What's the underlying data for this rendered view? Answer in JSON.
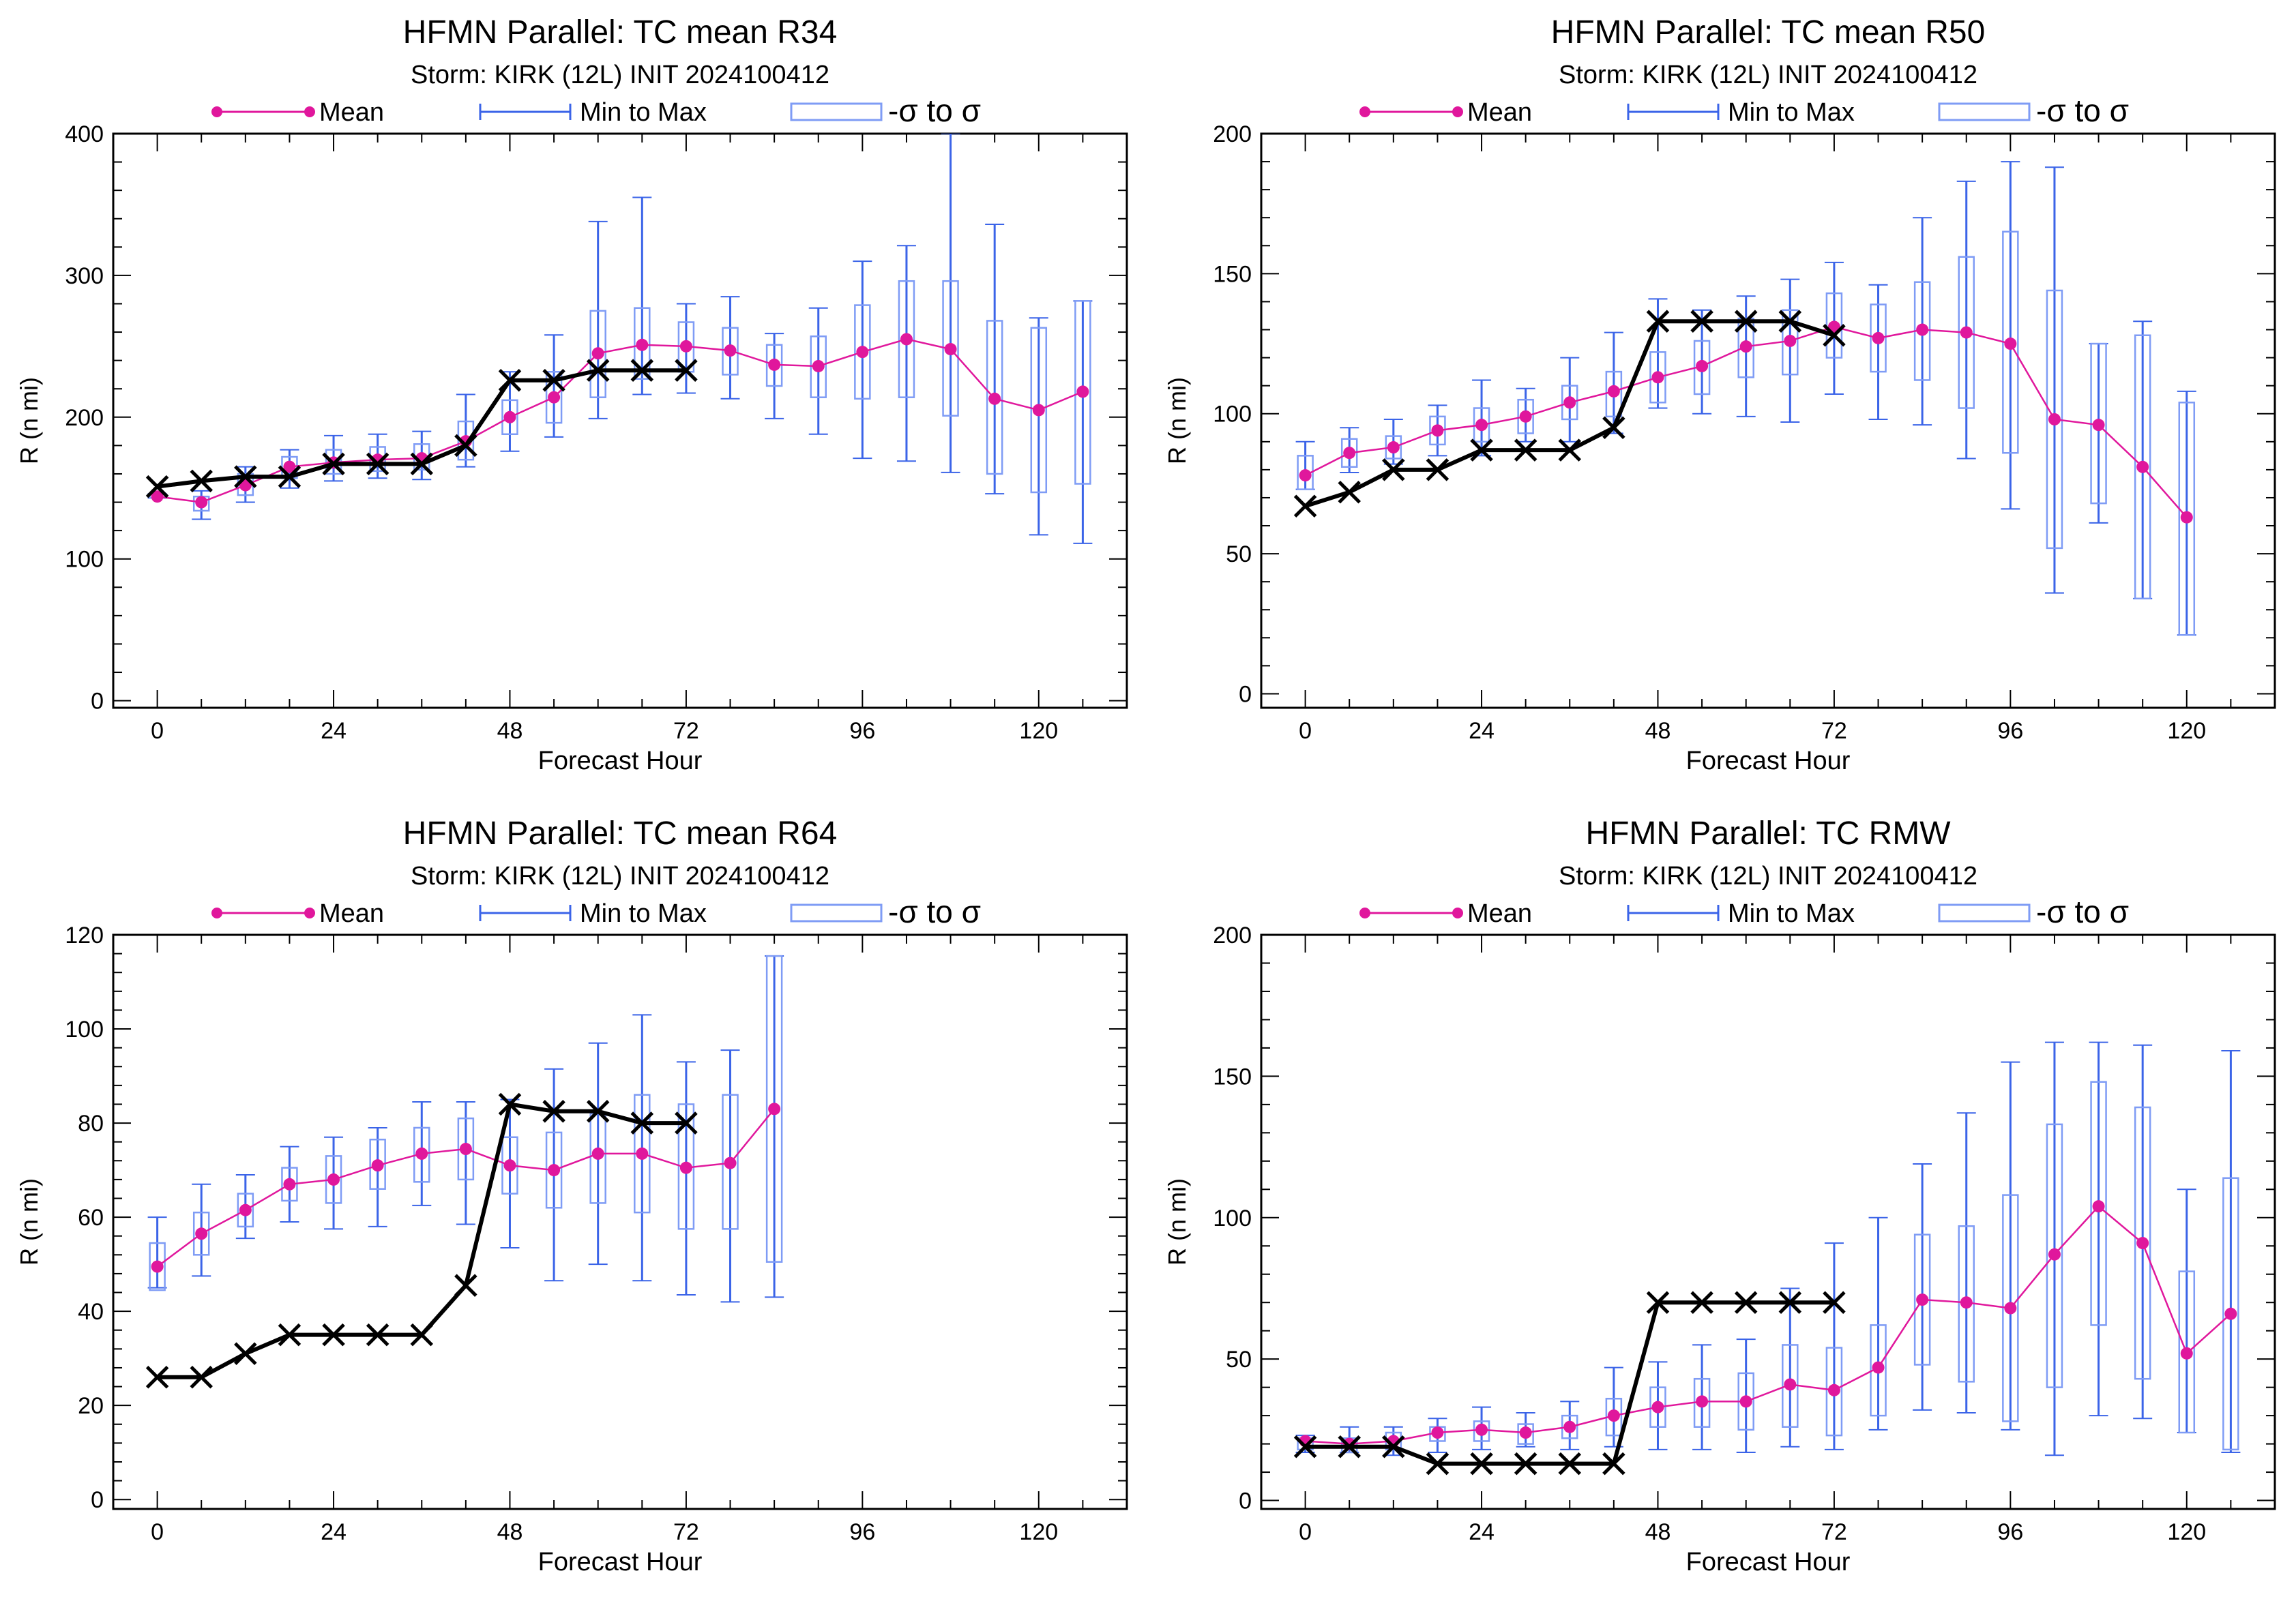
{
  "legend": {
    "mean_label": "Mean",
    "minmax_label": "Min to Max",
    "sigma_label": "-σ to σ"
  },
  "colors": {
    "mean": "#e0179c",
    "box": "#3b64e8",
    "box_thin": "#7f9cf5",
    "observed": "#000000"
  },
  "chart_data": [
    {
      "type": "box",
      "title": "HFMN Parallel: TC mean R34",
      "subtitle": "Storm: KIRK (12L) INIT 2024100412",
      "xlabel": "Forecast Hour",
      "ylabel": "R (n mi)",
      "xlim": [
        -6,
        132
      ],
      "ylim": [
        -5,
        400
      ],
      "xticks": [
        0,
        24,
        48,
        72,
        96,
        120
      ],
      "yticks": [
        0,
        100,
        200,
        300,
        400
      ],
      "mean": {
        "x": [
          0,
          6,
          12,
          18,
          24,
          30,
          36,
          42,
          48,
          54,
          60,
          66,
          72,
          78,
          84,
          90,
          96,
          102,
          108,
          114,
          120,
          126
        ],
        "y": [
          144,
          140,
          152,
          165,
          168,
          170,
          171,
          183,
          200,
          214,
          245,
          251,
          250,
          247,
          237,
          236,
          246,
          255,
          248,
          213,
          205,
          218
        ]
      },
      "boxes": [
        {
          "x": 0,
          "min": 143,
          "max": 146,
          "lo": 143,
          "hi": 146
        },
        {
          "x": 6,
          "min": 128,
          "max": 148,
          "lo": 134,
          "hi": 144
        },
        {
          "x": 12,
          "min": 140,
          "max": 165,
          "lo": 145,
          "hi": 160
        },
        {
          "x": 18,
          "min": 150,
          "max": 177,
          "lo": 157,
          "hi": 172
        },
        {
          "x": 24,
          "min": 155,
          "max": 187,
          "lo": 160,
          "hi": 177
        },
        {
          "x": 30,
          "min": 157,
          "max": 188,
          "lo": 162,
          "hi": 179
        },
        {
          "x": 36,
          "min": 156,
          "max": 190,
          "lo": 163,
          "hi": 181
        },
        {
          "x": 42,
          "min": 165,
          "max": 216,
          "lo": 170,
          "hi": 197
        },
        {
          "x": 48,
          "min": 176,
          "max": 232,
          "lo": 188,
          "hi": 212
        },
        {
          "x": 54,
          "min": 186,
          "max": 258,
          "lo": 196,
          "hi": 232
        },
        {
          "x": 60,
          "min": 199,
          "max": 338,
          "lo": 214,
          "hi": 275
        },
        {
          "x": 66,
          "min": 216,
          "max": 355,
          "lo": 227,
          "hi": 277
        },
        {
          "x": 72,
          "min": 217,
          "max": 280,
          "lo": 232,
          "hi": 267
        },
        {
          "x": 78,
          "min": 213,
          "max": 285,
          "lo": 230,
          "hi": 263
        },
        {
          "x": 84,
          "min": 199,
          "max": 259,
          "lo": 222,
          "hi": 251
        },
        {
          "x": 90,
          "min": 188,
          "max": 277,
          "lo": 214,
          "hi": 257
        },
        {
          "x": 96,
          "min": 171,
          "max": 310,
          "lo": 213,
          "hi": 279
        },
        {
          "x": 102,
          "min": 169,
          "max": 321,
          "lo": 214,
          "hi": 296
        },
        {
          "x": 108,
          "min": 161,
          "max": 400,
          "lo": 201,
          "hi": 296
        },
        {
          "x": 114,
          "min": 146,
          "max": 336,
          "lo": 160,
          "hi": 268
        },
        {
          "x": 120,
          "min": 117,
          "max": 270,
          "lo": 147,
          "hi": 263
        },
        {
          "x": 126,
          "min": 111,
          "max": 282,
          "lo": 153,
          "hi": 282
        }
      ],
      "observed": {
        "x": [
          0,
          6,
          12,
          18,
          24,
          30,
          36,
          42,
          48,
          54,
          60,
          66,
          72
        ],
        "y": [
          151,
          155,
          158,
          158,
          167,
          167,
          167,
          180,
          226,
          226,
          233,
          233,
          233
        ]
      }
    },
    {
      "type": "box",
      "title": "HFMN Parallel: TC mean R50",
      "subtitle": "Storm: KIRK (12L) INIT 2024100412",
      "xlabel": "Forecast Hour",
      "ylabel": "R (n mi)",
      "xlim": [
        -6,
        132
      ],
      "ylim": [
        -5,
        200
      ],
      "xticks": [
        0,
        24,
        48,
        72,
        96,
        120
      ],
      "yticks": [
        0,
        50,
        100,
        150,
        200
      ],
      "mean": {
        "x": [
          0,
          6,
          12,
          18,
          24,
          30,
          36,
          42,
          48,
          54,
          60,
          66,
          72,
          78,
          84,
          90,
          96,
          102,
          108,
          114,
          120
        ],
        "y": [
          78,
          86,
          88,
          94,
          96,
          99,
          104,
          108,
          113,
          117,
          124,
          126,
          131,
          127,
          130,
          129,
          125,
          98,
          96,
          81,
          63
        ]
      },
      "boxes": [
        {
          "x": 0,
          "min": 73,
          "max": 90,
          "lo": 73,
          "hi": 85
        },
        {
          "x": 6,
          "min": 79,
          "max": 95,
          "lo": 81,
          "hi": 91
        },
        {
          "x": 12,
          "min": 82,
          "max": 98,
          "lo": 84,
          "hi": 92
        },
        {
          "x": 18,
          "min": 85,
          "max": 103,
          "lo": 89,
          "hi": 99
        },
        {
          "x": 24,
          "min": 85,
          "max": 112,
          "lo": 90,
          "hi": 102
        },
        {
          "x": 30,
          "min": 90,
          "max": 109,
          "lo": 93,
          "hi": 105
        },
        {
          "x": 36,
          "min": 90,
          "max": 120,
          "lo": 98,
          "hi": 110
        },
        {
          "x": 42,
          "min": 93,
          "max": 129,
          "lo": 99,
          "hi": 115
        },
        {
          "x": 48,
          "min": 102,
          "max": 141,
          "lo": 104,
          "hi": 122
        },
        {
          "x": 54,
          "min": 100,
          "max": 137,
          "lo": 107,
          "hi": 126
        },
        {
          "x": 60,
          "min": 99,
          "max": 142,
          "lo": 113,
          "hi": 134
        },
        {
          "x": 66,
          "min": 97,
          "max": 148,
          "lo": 114,
          "hi": 137
        },
        {
          "x": 72,
          "min": 107,
          "max": 154,
          "lo": 120,
          "hi": 143
        },
        {
          "x": 78,
          "min": 98,
          "max": 146,
          "lo": 115,
          "hi": 139
        },
        {
          "x": 84,
          "min": 96,
          "max": 170,
          "lo": 112,
          "hi": 147
        },
        {
          "x": 90,
          "min": 84,
          "max": 183,
          "lo": 102,
          "hi": 156
        },
        {
          "x": 96,
          "min": 66,
          "max": 190,
          "lo": 86,
          "hi": 165
        },
        {
          "x": 102,
          "min": 36,
          "max": 188,
          "lo": 52,
          "hi": 144
        },
        {
          "x": 108,
          "min": 61,
          "max": 125,
          "lo": 68,
          "hi": 125
        },
        {
          "x": 114,
          "min": 34,
          "max": 133,
          "lo": 34,
          "hi": 128
        },
        {
          "x": 120,
          "min": 21,
          "max": 108,
          "lo": 21,
          "hi": 104
        }
      ],
      "observed": {
        "x": [
          0,
          6,
          12,
          18,
          24,
          30,
          36,
          42,
          48,
          54,
          60,
          66,
          72
        ],
        "y": [
          67,
          72,
          80,
          80,
          87,
          87,
          87,
          95,
          133,
          133,
          133,
          133,
          128
        ]
      }
    },
    {
      "type": "box",
      "title": "HFMN Parallel: TC mean R64",
      "subtitle": "Storm: KIRK (12L) INIT 2024100412",
      "xlabel": "Forecast Hour",
      "ylabel": "R (n mi)",
      "xlim": [
        -6,
        132
      ],
      "ylim": [
        -2,
        120
      ],
      "xticks": [
        0,
        24,
        48,
        72,
        96,
        120
      ],
      "yticks": [
        0,
        20,
        40,
        60,
        80,
        100,
        120
      ],
      "mean": {
        "x": [
          0,
          6,
          12,
          18,
          24,
          30,
          36,
          42,
          48,
          54,
          60,
          66,
          72,
          78,
          84
        ],
        "y": [
          49.5,
          56.5,
          61.5,
          67,
          68,
          71,
          73.5,
          74.5,
          71,
          70,
          73.5,
          73.5,
          70.5,
          71.5,
          83
        ]
      },
      "boxes": [
        {
          "x": 0,
          "min": 45,
          "max": 60,
          "lo": 44.5,
          "hi": 54.5
        },
        {
          "x": 6,
          "min": 47.5,
          "max": 67,
          "lo": 52,
          "hi": 61
        },
        {
          "x": 12,
          "min": 55.5,
          "max": 69,
          "lo": 58,
          "hi": 65
        },
        {
          "x": 18,
          "min": 59,
          "max": 75,
          "lo": 63.5,
          "hi": 70.5
        },
        {
          "x": 24,
          "min": 57.5,
          "max": 77,
          "lo": 63,
          "hi": 73
        },
        {
          "x": 30,
          "min": 58,
          "max": 79,
          "lo": 66,
          "hi": 76.5
        },
        {
          "x": 36,
          "min": 62.5,
          "max": 84.5,
          "lo": 67.5,
          "hi": 79
        },
        {
          "x": 42,
          "min": 58.5,
          "max": 84.5,
          "lo": 68,
          "hi": 81
        },
        {
          "x": 48,
          "min": 53.5,
          "max": 85,
          "lo": 65,
          "hi": 77
        },
        {
          "x": 54,
          "min": 46.5,
          "max": 91.5,
          "lo": 62,
          "hi": 78
        },
        {
          "x": 60,
          "min": 50,
          "max": 97,
          "lo": 63,
          "hi": 82
        },
        {
          "x": 66,
          "min": 46.5,
          "max": 103,
          "lo": 61,
          "hi": 86
        },
        {
          "x": 72,
          "min": 43.5,
          "max": 93,
          "lo": 57.5,
          "hi": 84
        },
        {
          "x": 78,
          "min": 42,
          "max": 95.5,
          "lo": 57.5,
          "hi": 86
        },
        {
          "x": 84,
          "min": 43,
          "max": 115.5,
          "lo": 50.5,
          "hi": 115.5
        }
      ],
      "observed": {
        "x": [
          0,
          6,
          12,
          18,
          24,
          30,
          36,
          42,
          48,
          54,
          60,
          66,
          72
        ],
        "y": [
          26,
          26,
          31,
          35,
          35,
          35,
          35,
          45.5,
          84,
          82.5,
          82.5,
          80,
          80
        ]
      }
    },
    {
      "type": "box",
      "title": "HFMN Parallel: TC RMW",
      "subtitle": "Storm: KIRK (12L) INIT 2024100412",
      "xlabel": "Forecast Hour",
      "ylabel": "R (n mi)",
      "xlim": [
        -6,
        132
      ],
      "ylim": [
        -3,
        200
      ],
      "xticks": [
        0,
        24,
        48,
        72,
        96,
        120
      ],
      "yticks": [
        0,
        50,
        100,
        150,
        200
      ],
      "mean": {
        "x": [
          0,
          6,
          12,
          18,
          24,
          30,
          36,
          42,
          48,
          54,
          60,
          66,
          72,
          78,
          84,
          90,
          96,
          102,
          108,
          114,
          120,
          126
        ],
        "y": [
          21,
          20,
          21,
          24,
          25,
          24,
          26,
          30,
          33,
          35,
          35,
          41,
          39,
          47,
          71,
          70,
          68,
          87,
          104,
          91,
          52,
          66
        ]
      },
      "boxes": [
        {
          "x": 0,
          "min": 17,
          "max": 23,
          "lo": 18,
          "hi": 22
        },
        {
          "x": 6,
          "min": 17,
          "max": 26,
          "lo": 17,
          "hi": 22
        },
        {
          "x": 12,
          "min": 16,
          "max": 26,
          "lo": 18,
          "hi": 24
        },
        {
          "x": 18,
          "min": 17,
          "max": 29,
          "lo": 21,
          "hi": 26
        },
        {
          "x": 24,
          "min": 18,
          "max": 33,
          "lo": 21,
          "hi": 28
        },
        {
          "x": 30,
          "min": 19,
          "max": 31,
          "lo": 20,
          "hi": 27
        },
        {
          "x": 36,
          "min": 18,
          "max": 35,
          "lo": 22,
          "hi": 30
        },
        {
          "x": 42,
          "min": 19,
          "max": 47,
          "lo": 23,
          "hi": 36
        },
        {
          "x": 48,
          "min": 18,
          "max": 49,
          "lo": 26,
          "hi": 40
        },
        {
          "x": 54,
          "min": 18,
          "max": 55,
          "lo": 26,
          "hi": 43
        },
        {
          "x": 60,
          "min": 17,
          "max": 57,
          "lo": 25,
          "hi": 45
        },
        {
          "x": 66,
          "min": 19,
          "max": 75,
          "lo": 26,
          "hi": 55
        },
        {
          "x": 72,
          "min": 18,
          "max": 91,
          "lo": 23,
          "hi": 54
        },
        {
          "x": 78,
          "min": 25,
          "max": 100,
          "lo": 30,
          "hi": 62
        },
        {
          "x": 84,
          "min": 32,
          "max": 119,
          "lo": 48,
          "hi": 94
        },
        {
          "x": 90,
          "min": 31,
          "max": 137,
          "lo": 42,
          "hi": 97
        },
        {
          "x": 96,
          "min": 25,
          "max": 155,
          "lo": 28,
          "hi": 108
        },
        {
          "x": 102,
          "min": 16,
          "max": 162,
          "lo": 40,
          "hi": 133
        },
        {
          "x": 108,
          "min": 30,
          "max": 162,
          "lo": 62,
          "hi": 148
        },
        {
          "x": 114,
          "min": 29,
          "max": 161,
          "lo": 43,
          "hi": 139
        },
        {
          "x": 120,
          "min": 24,
          "max": 110,
          "lo": 24,
          "hi": 81
        },
        {
          "x": 126,
          "min": 17,
          "max": 159,
          "lo": 18,
          "hi": 114
        }
      ],
      "observed": {
        "x": [
          0,
          6,
          12,
          18,
          24,
          30,
          36,
          42,
          48,
          54,
          60,
          66,
          72
        ],
        "y": [
          19,
          19,
          19,
          13,
          13,
          13,
          13,
          13,
          70,
          70,
          70,
          70,
          70
        ]
      }
    }
  ]
}
